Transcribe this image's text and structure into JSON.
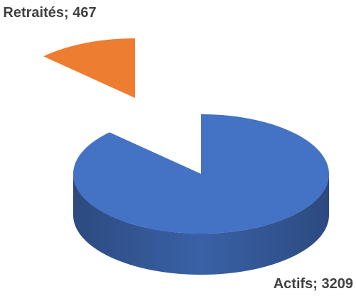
{
  "chart_data": {
    "type": "pie",
    "values": [
      467,
      3209
    ],
    "value_labels": [
      "Retraités; 467",
      "Actifs; 3209"
    ],
    "colors": [
      "#ed7d31",
      "#4472c4"
    ]
  }
}
